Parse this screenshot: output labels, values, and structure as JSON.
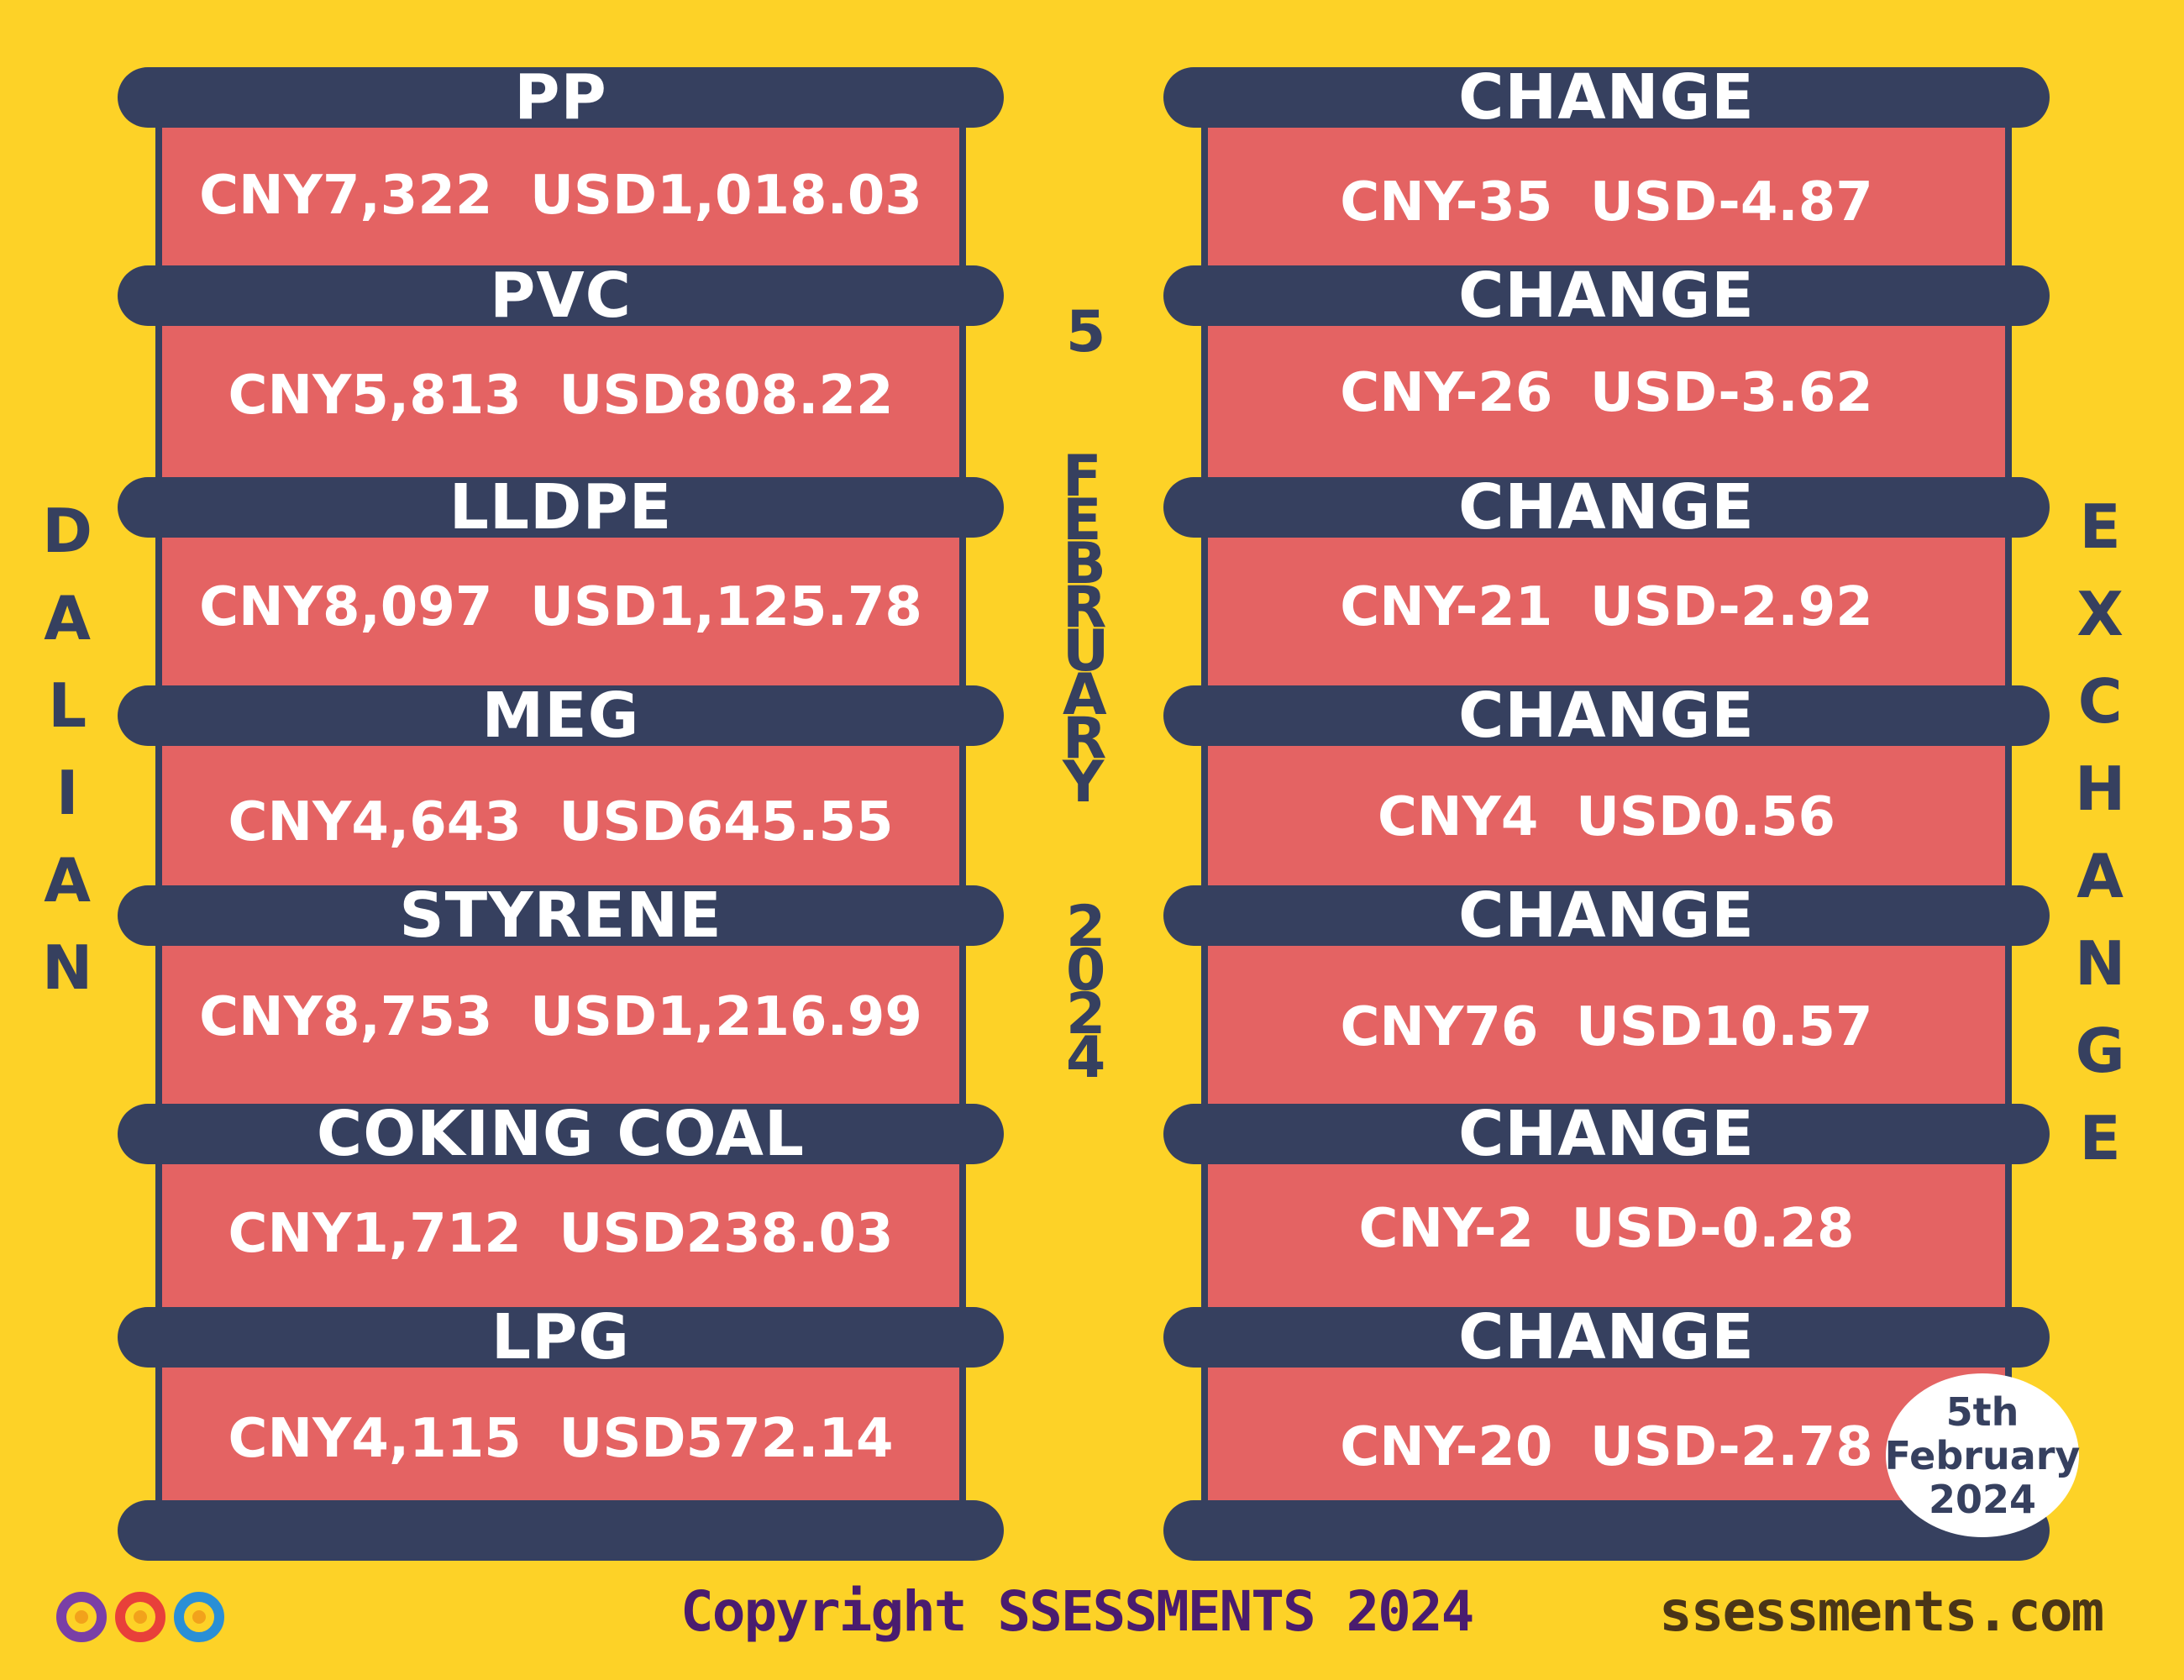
{
  "products": [
    {
      "name": "PP",
      "price": "CNY7,322  USD1,018.03",
      "change_label": "CHANGE",
      "change": "CNY-35  USD-4.87"
    },
    {
      "name": "PVC",
      "price": "CNY5,813  USD808.22",
      "change_label": "CHANGE",
      "change": "CNY-26  USD-3.62"
    },
    {
      "name": "LLDPE",
      "price": "CNY8,097  USD1,125.78",
      "change_label": "CHANGE",
      "change": "CNY-21  USD-2.92"
    },
    {
      "name": "MEG",
      "price": "CNY4,643  USD645.55",
      "change_label": "CHANGE",
      "change": "CNY4  USD0.56"
    },
    {
      "name": "STYRENE",
      "price": "CNY8,753  USD1,216.99",
      "change_label": "CHANGE",
      "change": "CNY76  USD10.57"
    },
    {
      "name": "COKING COAL",
      "price": "CNY1,712  USD238.03",
      "change_label": "CHANGE",
      "change": "CNY-2  USD-0.28"
    },
    {
      "name": "LPG",
      "price": "CNY4,115  USD572.14",
      "change_label": "CHANGE",
      "change": "CNY-20  USD-2.78"
    }
  ],
  "side_left": "DALIAN",
  "side_right": "EXCHANGE",
  "date_vertical": {
    "day": "5",
    "month": "FEBRUARY",
    "year": "2024"
  },
  "date_badge": {
    "line1": "5th",
    "line2": "February",
    "line3": "2024"
  },
  "footer": {
    "copyright": "Copyright SSESSMENTS 2024",
    "site": "ssessments.com"
  },
  "colors": {
    "background": "#FDD227",
    "bar": "#36405F",
    "panel": "#E46363",
    "text": "#FFFFFF"
  },
  "logo_icon": "infinity-loops-logo"
}
